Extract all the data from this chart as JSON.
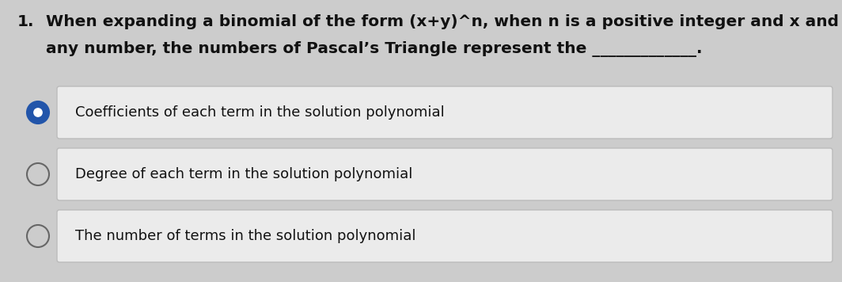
{
  "background_color": "#cccccc",
  "question_number": "1.",
  "question_text_line1": "When expanding a binomial of the form (x+y)^n, when n is a positive integer and x and y are",
  "question_text_line2": "any number, the numbers of Pascal’s Triangle represent the _____________.",
  "options": [
    {
      "text": "Coefficients of each term in the solution polynomial",
      "selected": true
    },
    {
      "text": "Degree of each term in the solution polynomial",
      "selected": false
    },
    {
      "text": "The number of terms in the solution polynomial",
      "selected": false
    }
  ],
  "option_box_facecolor": "#ebebeb",
  "option_box_edgecolor": "#bbbbbb",
  "selected_circle_fill": "#2255aa",
  "selected_circle_edge": "#2255aa",
  "unselected_circle_fill": "#cccccc",
  "circle_edge_color": "#666666",
  "text_color": "#111111",
  "question_fontsize": 14.5,
  "option_fontsize": 13.0,
  "fig_width": 10.64,
  "fig_height": 3.56,
  "dpi": 100
}
